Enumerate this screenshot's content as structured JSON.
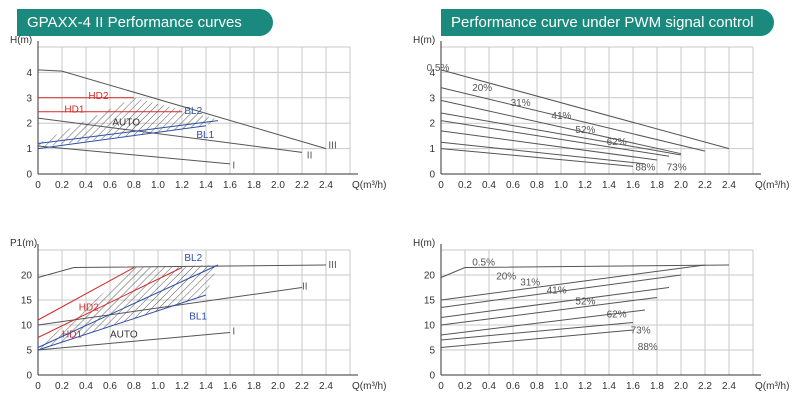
{
  "headers": {
    "left": "GPAXX-4 II Performance curves",
    "right": "Performance curve under PWM signal control"
  },
  "colors": {
    "banner": "#1a8a7e",
    "hd": "#d22a2a",
    "bl": "#2b4fa8",
    "curve": "#555555",
    "grid": "#c8c8c8"
  },
  "chart_data": [
    {
      "id": "head-modes",
      "type": "line",
      "ylabel": "H(m)",
      "xlabel": "Q(m³/h)",
      "xlim": [
        0,
        2.6
      ],
      "ylim": [
        0,
        5
      ],
      "xticks": [
        "0",
        "0.2",
        "0.4",
        "0.6",
        "0.8",
        "1.0",
        "1.2",
        "1.4",
        "1.6",
        "1.8",
        "2.0",
        "2.2",
        "2.4"
      ],
      "yticks": [
        "0",
        "1",
        "2",
        "3",
        "4"
      ],
      "grid": true,
      "curves": [
        {
          "name": "I",
          "color": "curve",
          "x": [
            0,
            1.6
          ],
          "y": [
            1.1,
            0.4
          ],
          "label_at": [
            1.62,
            0.35
          ]
        },
        {
          "name": "II",
          "color": "curve",
          "x": [
            0,
            2.2
          ],
          "y": [
            2.2,
            0.85
          ],
          "label_at": [
            2.24,
            0.75
          ]
        },
        {
          "name": "III",
          "color": "curve",
          "x": [
            0,
            0.2,
            2.4
          ],
          "y": [
            4.1,
            4.05,
            1.0
          ],
          "label_at": [
            2.42,
            1.15
          ]
        },
        {
          "name": "HD2",
          "color": "hd",
          "x": [
            0,
            0.8
          ],
          "y": [
            3.0,
            3.0
          ],
          "label_at": [
            0.42,
            3.1
          ]
        },
        {
          "name": "HD1",
          "color": "hd",
          "x": [
            0,
            1.2
          ],
          "y": [
            2.45,
            2.45
          ],
          "label_at": [
            0.22,
            2.55
          ]
        },
        {
          "name": "BL2",
          "color": "bl",
          "x": [
            0,
            1.5
          ],
          "y": [
            1.2,
            2.1
          ],
          "label_at": [
            1.22,
            2.5
          ]
        },
        {
          "name": "BL1",
          "color": "bl",
          "x": [
            0,
            1.4
          ],
          "y": [
            1.0,
            1.9
          ],
          "label_at": [
            1.32,
            1.55
          ]
        }
      ],
      "auto_label": "AUTO",
      "auto_label_at": [
        0.62,
        2.05
      ],
      "auto_region": {
        "x": [
          0,
          0.8,
          1.5,
          1.4,
          0
        ],
        "y": [
          1.2,
          3.0,
          2.15,
          1.9,
          1.05
        ]
      }
    },
    {
      "id": "head-pwm",
      "type": "line",
      "ylabel": "H(m)",
      "xlabel": "Q(m³/h)",
      "xlim": [
        0,
        2.6
      ],
      "ylim": [
        0,
        5
      ],
      "xticks": [
        "0",
        "0.2",
        "0.4",
        "0.6",
        "0.8",
        "1.0",
        "1.2",
        "1.4",
        "1.6",
        "1.8",
        "2.0",
        "2.2",
        "2.4"
      ],
      "yticks": [
        "0",
        "1",
        "2",
        "3",
        "4"
      ],
      "grid": true,
      "curves": [
        {
          "name": "0.5%",
          "color": "curve",
          "x": [
            0,
            2.4
          ],
          "y": [
            4.1,
            1.0
          ],
          "label_at": [
            -0.12,
            4.2
          ]
        },
        {
          "name": "20%",
          "color": "curve",
          "x": [
            0,
            2.2
          ],
          "y": [
            3.4,
            0.9
          ],
          "label_at": [
            0.26,
            3.4
          ]
        },
        {
          "name": "31%",
          "color": "curve",
          "x": [
            0,
            2.0
          ],
          "y": [
            2.9,
            0.8
          ],
          "label_at": [
            0.58,
            2.82
          ]
        },
        {
          "name": "41%",
          "color": "curve",
          "x": [
            0,
            2.0
          ],
          "y": [
            2.4,
            0.75
          ],
          "label_at": [
            0.92,
            2.3
          ]
        },
        {
          "name": "52%",
          "color": "curve",
          "x": [
            0,
            1.9
          ],
          "y": [
            2.1,
            0.7
          ],
          "label_at": [
            1.12,
            1.75
          ]
        },
        {
          "name": "62%",
          "color": "curve",
          "x": [
            0,
            1.8
          ],
          "y": [
            1.7,
            0.55
          ],
          "label_at": [
            1.38,
            1.28
          ]
        },
        {
          "name": "73%",
          "color": "curve",
          "x": [
            0,
            1.7
          ],
          "y": [
            1.25,
            0.4
          ],
          "label_at": [
            1.88,
            0.28
          ]
        },
        {
          "name": "88%",
          "color": "curve",
          "x": [
            0,
            1.6
          ],
          "y": [
            1.0,
            0.3
          ],
          "label_at": [
            1.62,
            0.28
          ]
        }
      ]
    },
    {
      "id": "power-modes",
      "type": "line",
      "ylabel": "P1(m)",
      "xlabel": "Q(m³/h)",
      "xlim": [
        0,
        2.6
      ],
      "ylim": [
        0,
        25
      ],
      "xticks": [
        "0",
        "0.2",
        "0.4",
        "0.6",
        "0.8",
        "1.0",
        "1.2",
        "1.4",
        "1.6",
        "1.8",
        "2.0",
        "2.2",
        "2.4"
      ],
      "yticks": [
        "0",
        "5",
        "10",
        "15",
        "20"
      ],
      "grid": true,
      "curves": [
        {
          "name": "I",
          "color": "curve",
          "x": [
            0,
            1.6
          ],
          "y": [
            5,
            8.5
          ],
          "label_at": [
            1.62,
            8.8
          ]
        },
        {
          "name": "II",
          "color": "curve",
          "x": [
            0,
            2.2
          ],
          "y": [
            10,
            17.5
          ],
          "label_at": [
            2.2,
            17.8
          ]
        },
        {
          "name": "III",
          "color": "curve",
          "x": [
            0,
            0.3,
            2.4
          ],
          "y": [
            19.5,
            21.5,
            22
          ],
          "label_at": [
            2.42,
            22.1
          ]
        },
        {
          "name": "HD2",
          "color": "hd",
          "x": [
            0,
            0.8
          ],
          "y": [
            11,
            21.5
          ],
          "label_at": [
            0.34,
            13.6
          ]
        },
        {
          "name": "HD1",
          "color": "hd",
          "x": [
            0,
            1.2
          ],
          "y": [
            7.5,
            21.5
          ],
          "label_at": [
            0.2,
            8.2
          ]
        },
        {
          "name": "BL2",
          "color": "bl",
          "x": [
            0,
            1.5
          ],
          "y": [
            5.5,
            22
          ],
          "label_at": [
            1.22,
            23.5
          ]
        },
        {
          "name": "BL1",
          "color": "bl",
          "x": [
            0,
            1.4
          ],
          "y": [
            5,
            16
          ],
          "label_at": [
            1.26,
            11.8
          ]
        }
      ],
      "auto_label": "AUTO",
      "auto_label_at": [
        0.6,
        8.2
      ],
      "auto_region": {
        "x": [
          0,
          0.8,
          1.5,
          1.4,
          0
        ],
        "y": [
          5.5,
          21.5,
          22,
          16,
          5
        ]
      }
    },
    {
      "id": "power-pwm",
      "type": "line",
      "ylabel": "H(m)",
      "xlabel": "Q(m³/h)",
      "xlim": [
        0,
        2.6
      ],
      "ylim": [
        0,
        25
      ],
      "xticks": [
        "0",
        "0.2",
        "0.4",
        "0.6",
        "0.8",
        "1.0",
        "1.2",
        "1.4",
        "1.6",
        "1.8",
        "2.0",
        "2.2",
        "2.4"
      ],
      "yticks": [
        "0",
        "5",
        "10",
        "15",
        "20"
      ],
      "grid": true,
      "curves": [
        {
          "name": "0.5%",
          "color": "curve",
          "x": [
            0,
            0.2,
            2.4
          ],
          "y": [
            19.5,
            21.5,
            22
          ],
          "label_at": [
            0.26,
            22.6
          ]
        },
        {
          "name": "20%",
          "color": "curve",
          "x": [
            0,
            2.2
          ],
          "y": [
            15,
            22
          ],
          "label_at": [
            0.46,
            19.8
          ]
        },
        {
          "name": "31%",
          "color": "curve",
          "x": [
            0,
            2.0
          ],
          "y": [
            13.5,
            20
          ],
          "label_at": [
            0.66,
            18.6
          ]
        },
        {
          "name": "41%",
          "color": "curve",
          "x": [
            0,
            1.9
          ],
          "y": [
            11.5,
            17.5
          ],
          "label_at": [
            0.88,
            17.0
          ]
        },
        {
          "name": "52%",
          "color": "curve",
          "x": [
            0,
            1.8
          ],
          "y": [
            10,
            15.5
          ],
          "label_at": [
            1.12,
            14.8
          ]
        },
        {
          "name": "62%",
          "color": "curve",
          "x": [
            0,
            1.7
          ],
          "y": [
            8,
            13
          ],
          "label_at": [
            1.38,
            12.2
          ]
        },
        {
          "name": "73%",
          "color": "curve",
          "x": [
            0,
            1.6
          ],
          "y": [
            7,
            10.5
          ],
          "label_at": [
            1.58,
            9.0
          ]
        },
        {
          "name": "88%",
          "color": "curve",
          "x": [
            0,
            1.6
          ],
          "y": [
            5.5,
            9
          ],
          "label_at": [
            1.64,
            5.7
          ]
        }
      ]
    }
  ]
}
